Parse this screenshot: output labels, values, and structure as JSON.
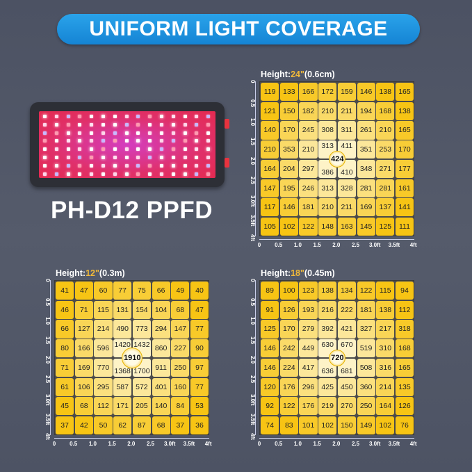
{
  "banner": {
    "title": "UNIFORM LIGHT COVERAGE",
    "color": "#1e90da"
  },
  "product": {
    "model_label": "PH-D12 PPFD"
  },
  "axis_ticks": [
    "0",
    "0.5",
    "1.0",
    "1.5",
    "2.0",
    "2.5",
    "3.0ft",
    "3.5ft",
    "4ft"
  ],
  "charts": [
    {
      "id": "24",
      "title_prefix": "Height:",
      "height_value": "24\"",
      "height_metric": "(0.6cm)",
      "center_value": "424",
      "rows": [
        [
          "119",
          "133",
          "166",
          "172",
          "159",
          "146",
          "138",
          "165"
        ],
        [
          "121",
          "150",
          "182",
          "210",
          "211",
          "194",
          "168",
          "138"
        ],
        [
          "140",
          "170",
          "245",
          "308",
          "311",
          "261",
          "210",
          "165"
        ],
        [
          "210",
          "353",
          "210",
          "313",
          "411",
          "351",
          "253",
          "170"
        ],
        [
          "164",
          "204",
          "297",
          "386",
          "410",
          "348",
          "271",
          "177"
        ],
        [
          "147",
          "195",
          "246",
          "313",
          "328",
          "281",
          "281",
          "161"
        ],
        [
          "117",
          "146",
          "181",
          "210",
          "211",
          "169",
          "137",
          "141"
        ],
        [
          "105",
          "102",
          "122",
          "148",
          "163",
          "145",
          "125",
          "111"
        ]
      ]
    },
    {
      "id": "12",
      "title_prefix": "Height:",
      "height_value": "12\"",
      "height_metric": "(0.3m)",
      "center_value": "1910",
      "rows": [
        [
          "41",
          "47",
          "60",
          "77",
          "75",
          "66",
          "49",
          "40"
        ],
        [
          "46",
          "71",
          "115",
          "131",
          "154",
          "104",
          "68",
          "47"
        ],
        [
          "66",
          "127",
          "214",
          "490",
          "773",
          "294",
          "147",
          "77"
        ],
        [
          "80",
          "166",
          "596",
          "1420",
          "1432",
          "860",
          "227",
          "90"
        ],
        [
          "71",
          "169",
          "770",
          "1368",
          "1700",
          "911",
          "250",
          "97"
        ],
        [
          "61",
          "106",
          "295",
          "587",
          "572",
          "401",
          "160",
          "77"
        ],
        [
          "45",
          "68",
          "112",
          "171",
          "205",
          "140",
          "84",
          "53"
        ],
        [
          "37",
          "42",
          "50",
          "62",
          "87",
          "68",
          "37",
          "36"
        ]
      ]
    },
    {
      "id": "18",
      "title_prefix": "Height:",
      "height_value": "18\"",
      "height_metric": "(0.45m)",
      "center_value": "720",
      "rows": [
        [
          "89",
          "100",
          "123",
          "138",
          "134",
          "122",
          "115",
          "94"
        ],
        [
          "91",
          "126",
          "193",
          "216",
          "222",
          "181",
          "138",
          "112"
        ],
        [
          "125",
          "170",
          "279",
          "392",
          "421",
          "327",
          "217",
          "318"
        ],
        [
          "146",
          "242",
          "449",
          "630",
          "670",
          "519",
          "310",
          "168"
        ],
        [
          "146",
          "224",
          "417",
          "636",
          "681",
          "508",
          "316",
          "165"
        ],
        [
          "120",
          "176",
          "296",
          "425",
          "450",
          "360",
          "214",
          "135"
        ],
        [
          "92",
          "122",
          "176",
          "219",
          "270",
          "250",
          "164",
          "126"
        ],
        [
          "74",
          "83",
          "101",
          "102",
          "150",
          "149",
          "102",
          "76"
        ]
      ]
    }
  ]
}
